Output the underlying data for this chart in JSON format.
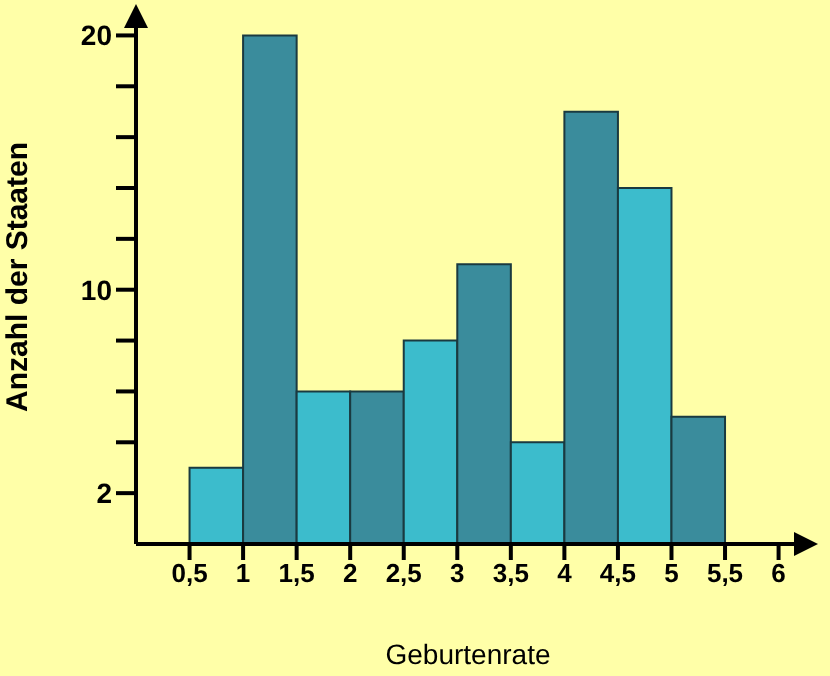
{
  "chart_data": {
    "type": "histogram",
    "xlabel": "Geburtenrate",
    "ylabel": "Anzahl der Staaten",
    "bins": [
      0.5,
      1,
      1.5,
      2,
      2.5,
      3,
      3.5,
      4,
      4.5,
      5,
      5.5
    ],
    "values": [
      3,
      20,
      6,
      6,
      8,
      11,
      4,
      17,
      14,
      5
    ],
    "colors": [
      "#3cbccc",
      "#3a8c9c",
      "#3cbccc",
      "#3a8c9c",
      "#3cbccc",
      "#3a8c9c",
      "#3cbccc",
      "#3a8c9c",
      "#3cbccc",
      "#3a8c9c"
    ],
    "xlim": [
      0,
      6.2
    ],
    "xticks": [
      {
        "value": 0.5,
        "label": "0,5"
      },
      {
        "value": 1,
        "label": "1"
      },
      {
        "value": 1.5,
        "label": "1,5"
      },
      {
        "value": 2,
        "label": "2"
      },
      {
        "value": 2.5,
        "label": "2,5"
      },
      {
        "value": 3,
        "label": "3"
      },
      {
        "value": 3.5,
        "label": "3,5"
      },
      {
        "value": 4,
        "label": "4"
      },
      {
        "value": 4.5,
        "label": "4,5"
      },
      {
        "value": 5,
        "label": "5"
      },
      {
        "value": 5.5,
        "label": "5,5"
      },
      {
        "value": 6,
        "label": "6"
      }
    ],
    "ylim": [
      0,
      21
    ],
    "yticks": [
      2,
      {
        "value": 4,
        "label": null
      },
      {
        "value": 6,
        "label": null
      },
      {
        "value": 8,
        "label": null
      },
      10,
      {
        "value": 12,
        "label": null
      },
      {
        "value": 14,
        "label": null
      },
      {
        "value": 16,
        "label": null
      },
      {
        "value": 18,
        "label": null
      },
      20
    ]
  }
}
